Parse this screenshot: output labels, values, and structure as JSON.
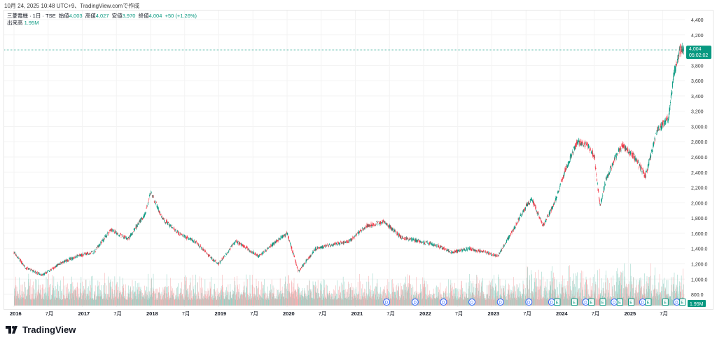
{
  "header": {
    "created": "10月 24, 2025 10:48 UTC+9、TradingView.comで作成"
  },
  "legend": {
    "symbol": "三菱電機 · 1日 · TSE",
    "open_label": "始値",
    "open": "4,003",
    "high_label": "高値",
    "high": "4,027",
    "low_label": "安値",
    "low": "3,970",
    "close_label": "終値",
    "close": "4,004",
    "change": "+50 (+1.26%)",
    "volume_label": "出来高",
    "volume": "1.95M"
  },
  "price_badge": {
    "price": "4,004",
    "countdown": "05:02:02"
  },
  "volume_badge": "1.95M",
  "logo": "TradingView",
  "colors": {
    "up": "#089981",
    "down": "#f23645",
    "up_vol": "#8fcfc2",
    "down_vol": "#f4a9ab",
    "dividend": "#2962ff",
    "earnings": "#089981"
  },
  "chart_data": {
    "type": "candlestick",
    "y_axis_ticks": [
      "4,400",
      "4,200",
      "3,800",
      "3,600",
      "3,400",
      "3,200",
      "3,000.0",
      "2,800.0",
      "2,600.0",
      "2,400.0",
      "2,200.0",
      "2,000.0",
      "1,800.0",
      "1,600.0",
      "1,400.0",
      "1,200.0",
      "1,000.0",
      "800.0"
    ],
    "x_axis_ticks": [
      "2016",
      "7月",
      "2017",
      "7月",
      "2018",
      "7月",
      "2019",
      "7月",
      "2020",
      "7月",
      "2021",
      "7月",
      "2022",
      "7月",
      "2023",
      "7月",
      "2024",
      "7月",
      "2025",
      "7月"
    ],
    "last_price": 4004,
    "approx_path": [
      [
        "2016-01",
        1350
      ],
      [
        "2016-03",
        1150
      ],
      [
        "2016-06",
        1050
      ],
      [
        "2016-09",
        1200
      ],
      [
        "2016-12",
        1300
      ],
      [
        "2017-03",
        1350
      ],
      [
        "2017-06",
        1650
      ],
      [
        "2017-09",
        1520
      ],
      [
        "2017-12",
        1850
      ],
      [
        "2018-01",
        2150
      ],
      [
        "2018-03",
        1800
      ],
      [
        "2018-06",
        1600
      ],
      [
        "2018-09",
        1480
      ],
      [
        "2018-12",
        1250
      ],
      [
        "2019-01",
        1200
      ],
      [
        "2019-04",
        1500
      ],
      [
        "2019-08",
        1300
      ],
      [
        "2019-12",
        1550
      ],
      [
        "2020-01",
        1600
      ],
      [
        "2020-03",
        1100
      ],
      [
        "2020-06",
        1400
      ],
      [
        "2020-09",
        1450
      ],
      [
        "2020-12",
        1500
      ],
      [
        "2021-03",
        1700
      ],
      [
        "2021-06",
        1750
      ],
      [
        "2021-09",
        1550
      ],
      [
        "2021-12",
        1500
      ],
      [
        "2022-03",
        1450
      ],
      [
        "2022-06",
        1350
      ],
      [
        "2022-09",
        1400
      ],
      [
        "2022-12",
        1350
      ],
      [
        "2023-02",
        1300
      ],
      [
        "2023-04",
        1550
      ],
      [
        "2023-07",
        1950
      ],
      [
        "2023-08",
        2050
      ],
      [
        "2023-10",
        1700
      ],
      [
        "2023-12",
        2000
      ],
      [
        "2024-02",
        2450
      ],
      [
        "2024-04",
        2800
      ],
      [
        "2024-06",
        2750
      ],
      [
        "2024-07",
        2600
      ],
      [
        "2024-08",
        1950
      ],
      [
        "2024-09",
        2300
      ],
      [
        "2024-11",
        2650
      ],
      [
        "2024-12",
        2750
      ],
      [
        "2025-02",
        2600
      ],
      [
        "2025-04",
        2350
      ],
      [
        "2025-06",
        2950
      ],
      [
        "2025-08",
        3100
      ],
      [
        "2025-09",
        3700
      ],
      [
        "2025-10",
        4004
      ]
    ],
    "events": [
      [
        "2021-06",
        "D"
      ],
      [
        "2021-11",
        "D"
      ],
      [
        "2022-04",
        "D"
      ],
      [
        "2022-09",
        "D"
      ],
      [
        "2023-02",
        "D"
      ],
      [
        "2023-07",
        "D"
      ],
      [
        "2023-11",
        "D"
      ],
      [
        "2023-12",
        "E"
      ],
      [
        "2024-03",
        "E"
      ],
      [
        "2024-05",
        "D"
      ],
      [
        "2024-06",
        "E"
      ],
      [
        "2024-08",
        "E"
      ],
      [
        "2024-10",
        "D"
      ],
      [
        "2024-11",
        "E"
      ],
      [
        "2025-01",
        "E"
      ],
      [
        "2025-03",
        "D"
      ],
      [
        "2025-04",
        "E"
      ],
      [
        "2025-07",
        "E"
      ],
      [
        "2025-09",
        "D"
      ],
      [
        "2025-10",
        "E"
      ]
    ]
  }
}
